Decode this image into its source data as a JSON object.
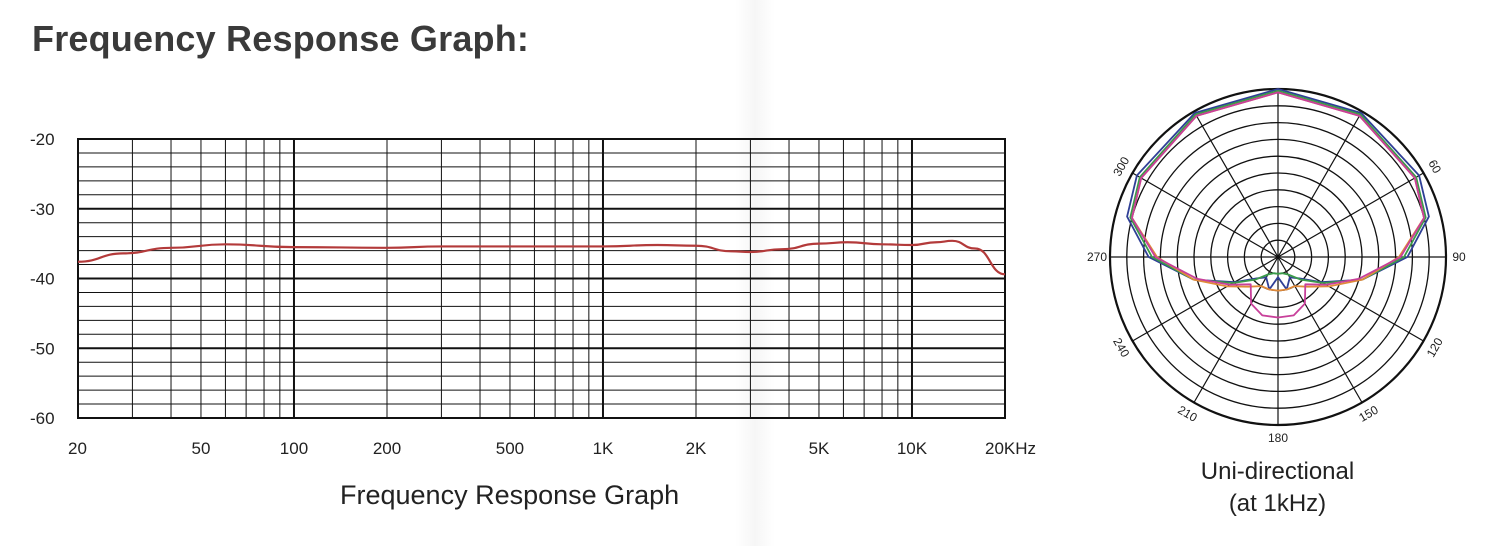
{
  "page": {
    "title": "Frequency Response Graph:"
  },
  "chart_data": [
    {
      "type": "line",
      "xlabel": "Frequency Response Graph",
      "ylabel": "",
      "x_scale": "log",
      "xlim": [
        20,
        20000
      ],
      "ylim": [
        -60,
        -20
      ],
      "grid": true,
      "x_ticks": [
        {
          "value": 20,
          "label": "20"
        },
        {
          "value": 50,
          "label": "50"
        },
        {
          "value": 100,
          "label": "100"
        },
        {
          "value": 200,
          "label": "200"
        },
        {
          "value": 500,
          "label": "500"
        },
        {
          "value": 1000,
          "label": "1K"
        },
        {
          "value": 2000,
          "label": "2K"
        },
        {
          "value": 5000,
          "label": "5K"
        },
        {
          "value": 10000,
          "label": "10K"
        },
        {
          "value": 20000,
          "label": "20KHz"
        }
      ],
      "y_ticks": [
        {
          "value": -20,
          "label": "-20"
        },
        {
          "value": -30,
          "label": "-30"
        },
        {
          "value": -40,
          "label": "-40"
        },
        {
          "value": -50,
          "label": "-50"
        },
        {
          "value": -60,
          "label": "-60"
        }
      ],
      "series": [
        {
          "color": "#b33a3a",
          "x": [
            20,
            28,
            40,
            60,
            100,
            200,
            300,
            500,
            1000,
            1500,
            2000,
            2600,
            3000,
            3800,
            5000,
            6200,
            8000,
            10000,
            12000,
            13500,
            16000,
            20000
          ],
          "y": [
            -37.6,
            -36.4,
            -35.6,
            -35.1,
            -35.5,
            -35.6,
            -35.4,
            -35.4,
            -35.4,
            -35.2,
            -35.3,
            -36.1,
            -36.2,
            -35.8,
            -35.0,
            -34.8,
            -35.1,
            -35.2,
            -34.8,
            -34.6,
            -35.7,
            -39.4
          ]
        }
      ]
    },
    {
      "type": "polar",
      "caption_line1": "Uni-directional",
      "caption_line2": "(at 1kHz)",
      "angle_labels": [
        {
          "angle": 60,
          "label": "60"
        },
        {
          "angle": 90,
          "label": "90"
        },
        {
          "angle": 120,
          "label": "120"
        },
        {
          "angle": 150,
          "label": "150"
        },
        {
          "angle": 180,
          "label": "180"
        },
        {
          "angle": 210,
          "label": "210"
        },
        {
          "angle": 240,
          "label": "240"
        },
        {
          "angle": 270,
          "label": "270"
        },
        {
          "angle": 300,
          "label": "300"
        }
      ],
      "rings": 10,
      "spokes_deg": 30,
      "series": [
        {
          "color": "#2f3f96",
          "angles": [
            0,
            30,
            60,
            75,
            90,
            105,
            120,
            135,
            150,
            165,
            180,
            195,
            210,
            225,
            240,
            255,
            270,
            285,
            300,
            330
          ],
          "r": [
            1.0,
            0.99,
            0.97,
            0.93,
            0.77,
            0.52,
            0.3,
            0.18,
            0.14,
            0.2,
            0.12,
            0.2,
            0.14,
            0.18,
            0.3,
            0.52,
            0.77,
            0.93,
            0.97,
            0.99
          ]
        },
        {
          "color": "#3a9a4a",
          "angles": [
            0,
            30,
            60,
            75,
            90,
            105,
            120,
            135,
            150,
            165,
            180,
            195,
            210,
            225,
            240,
            255,
            270,
            285,
            300,
            330
          ],
          "r": [
            0.99,
            0.98,
            0.95,
            0.91,
            0.75,
            0.52,
            0.31,
            0.19,
            0.12,
            0.1,
            0.1,
            0.1,
            0.12,
            0.19,
            0.31,
            0.52,
            0.75,
            0.91,
            0.95,
            0.98
          ]
        },
        {
          "color": "#e08a3a",
          "angles": [
            0,
            30,
            60,
            75,
            90,
            105,
            120,
            135,
            150,
            165,
            180,
            195,
            210,
            225,
            240,
            255,
            270,
            285,
            300,
            330
          ],
          "r": [
            0.98,
            0.97,
            0.94,
            0.9,
            0.72,
            0.52,
            0.35,
            0.25,
            0.2,
            0.2,
            0.2,
            0.2,
            0.2,
            0.25,
            0.35,
            0.52,
            0.72,
            0.9,
            0.94,
            0.97
          ]
        },
        {
          "color": "#c8409a",
          "angles": [
            0,
            30,
            60,
            75,
            90,
            105,
            120,
            135,
            150,
            165,
            180,
            195,
            210,
            225,
            240,
            255,
            270,
            285,
            300,
            330
          ],
          "r": [
            0.98,
            0.97,
            0.94,
            0.9,
            0.73,
            0.5,
            0.33,
            0.23,
            0.32,
            0.36,
            0.36,
            0.36,
            0.32,
            0.23,
            0.33,
            0.5,
            0.73,
            0.9,
            0.94,
            0.97
          ]
        }
      ]
    }
  ]
}
